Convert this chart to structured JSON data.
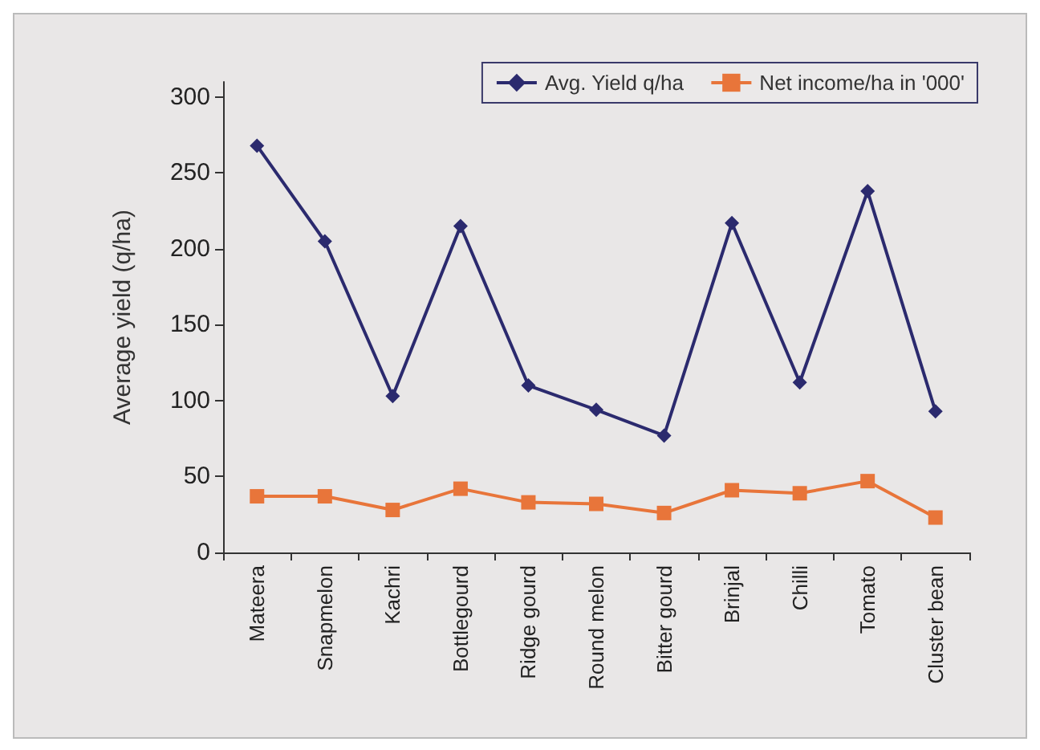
{
  "chart_data": {
    "type": "line",
    "ylabel": "Average yield (q/ha)",
    "categories": [
      "Mateera",
      "Snapmelon",
      "Kachri",
      "Bottlegourd",
      "Ridge gourd",
      "Round melon",
      "Bitter gourd",
      "Brinjal",
      "Chilli",
      "Tomato",
      "Cluster bean"
    ],
    "series": [
      {
        "name": "Avg. Yield q/ha",
        "color": "#2b2a6e",
        "marker": "diamond",
        "values": [
          268,
          205,
          103,
          215,
          110,
          94,
          77,
          217,
          112,
          238,
          93
        ]
      },
      {
        "name": "Net income/ha in '000'",
        "color": "#e8753a",
        "marker": "square",
        "values": [
          37,
          37,
          28,
          42,
          33,
          32,
          26,
          41,
          39,
          47,
          23
        ]
      }
    ],
    "ylim": [
      0,
      310
    ],
    "yticks": [
      0,
      50,
      100,
      150,
      200,
      250,
      300
    ],
    "grid": false,
    "legend": "top right"
  }
}
